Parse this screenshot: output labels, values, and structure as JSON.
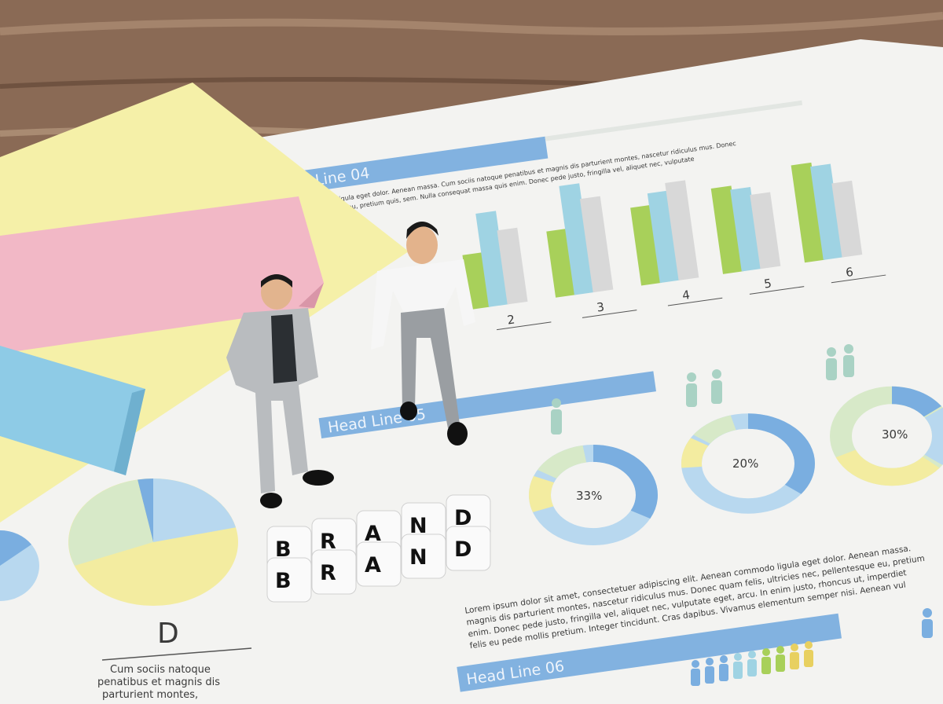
{
  "document": {
    "headlines": [
      "Head Line 04",
      "Head Line 05",
      "Head Line 06"
    ],
    "bar_chart_labels": [
      "2",
      "3",
      "4",
      "5",
      "6"
    ],
    "donut_labels": [
      "33%",
      "20%",
      "30%"
    ],
    "pie_label": "D",
    "pie_caption": [
      "Cum sociis natoque",
      "penatibus et magnis dis",
      "parturient montes,"
    ],
    "intro_text": [
      "commodo ligula eget dolor. Aenean massa. Cum sociis natoque penatibus et magnis dis parturient montes, nascetur ridiculus mus. Donec",
      "pellentesque eu, pretium quis, sem. Nulla consequat massa quis enim. Donec pede justo, fringilla vel, aliquet nec, vulputate"
    ],
    "paragraph": [
      "Lorem ipsum dolor sit amet, consectetuer adipiscing elit. Aenean commodo ligula eget dolor. Aenean massa.",
      "magnis dis parturient montes, nascetur ridiculus mus. Donec quam felis, ultricies nec, pellentesque eu, pretium",
      "enim. Donec pede justo, fringilla vel, aliquet nec, vulputate eget, arcu. In enim justo, rhoncus ut, imperdiet",
      "felis eu pede mollis pretium. Integer tincidunt. Cras dapibus. Vivamus elementum semper nisi. Aenean vul"
    ]
  },
  "blocks": {
    "row1": "BRAND",
    "row2": "BRAND"
  },
  "colors": {
    "wood": "#8a6a55",
    "paper": "#f3f3f1",
    "blue": "#7aaee0",
    "green": "#a8d05a",
    "cyan": "#9fd3e3",
    "gray": "#d8d8d8",
    "yellow_note": "#f5f0a8",
    "pink_note": "#f2b8c6",
    "blue_note": "#8ecbe6"
  }
}
